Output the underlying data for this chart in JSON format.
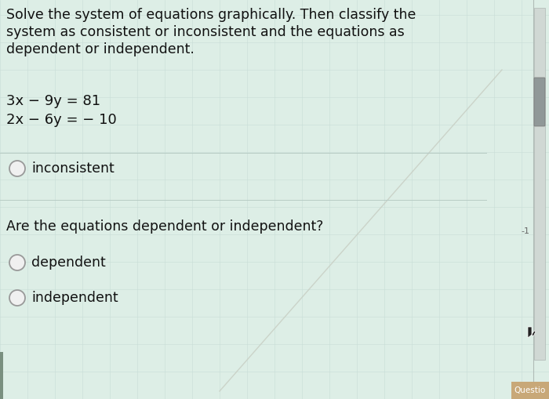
{
  "background_color": "#ddeee6",
  "title_text_line1": "Solve the system of equations graphically. Then classify the",
  "title_text_line2": "system as consistent or inconsistent and the equations as",
  "title_text_line3": "dependent or independent.",
  "eq1": "3x − 9y = 81",
  "eq2": "2x − 6y = − 10",
  "option_inconsistent": "inconsistent",
  "question2": "Are the equations dependent or independent?",
  "option_dependent": "dependent",
  "option_independent": "independent",
  "title_fontsize": 12.5,
  "eq_fontsize": 13.0,
  "option_fontsize": 12.5,
  "question2_fontsize": 12.5,
  "circle_color": "#f0f0f0",
  "circle_edge_color": "#999999",
  "text_color": "#111111",
  "grid_line_color_h": "#c8ddd6",
  "grid_line_color_v": "#c8ddd6",
  "sep_line_color": "#b8ccc6",
  "diagonal_line_color": "#c8cfc4",
  "scrollbar_track_color": "#c0cac4",
  "scrollbar_thumb_color": "#909898",
  "questia_box_color": "#c8a878",
  "questia_text": "Questio",
  "right_number": "-1"
}
